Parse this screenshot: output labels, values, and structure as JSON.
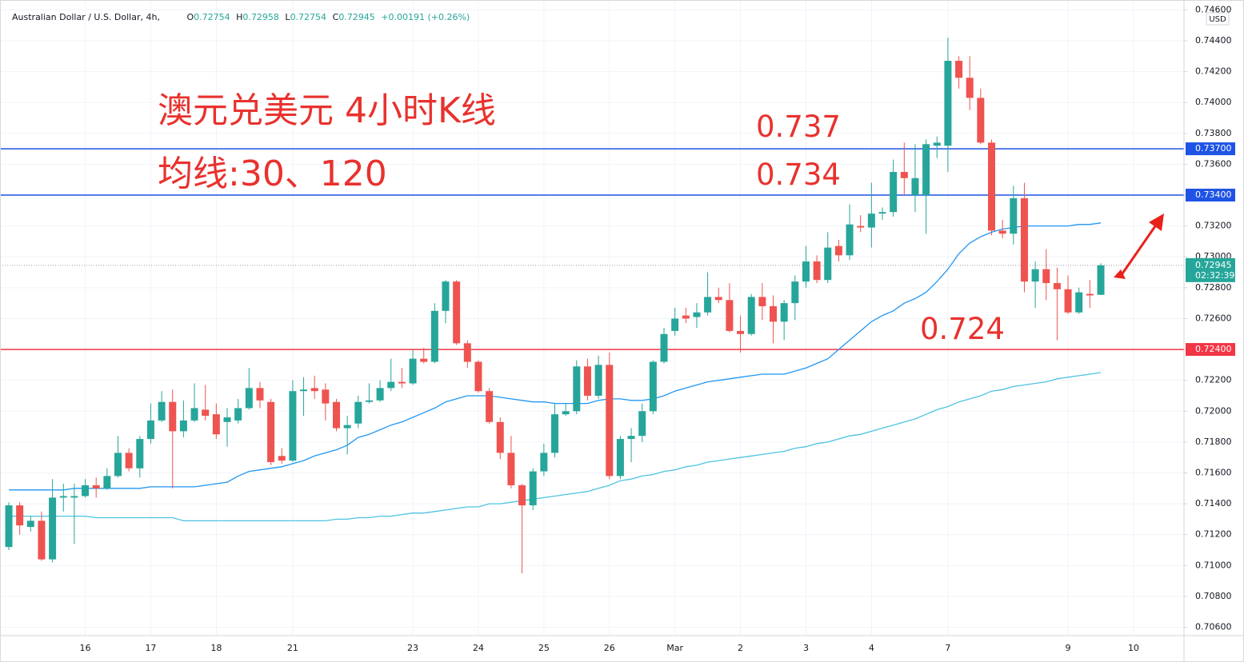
{
  "header": {
    "symbol": "Australian Dollar / U.S. Dollar, 4h,",
    "ohlc_keys": [
      "O",
      "H",
      "L",
      "C"
    ],
    "change": "+0.00191",
    "change_percent": "(+0.26%)"
  },
  "chart_data": {
    "type": "candlestick",
    "currency": "USD",
    "annotations": [
      "澳元兑美元 4小时K线",
      "均线:30、120"
    ],
    "up_color": "#26a69a",
    "down_color": "#ef5350",
    "grid": true,
    "categories": [
      null,
      null,
      null,
      null,
      null,
      null,
      null,
      "16",
      null,
      null,
      null,
      null,
      null,
      "17",
      null,
      null,
      null,
      null,
      null,
      "18",
      null,
      null,
      null,
      null,
      null,
      null,
      "21",
      null,
      null,
      null,
      null,
      null,
      null,
      null,
      null,
      null,
      null,
      "23",
      null,
      null,
      null,
      null,
      null,
      "24",
      null,
      null,
      null,
      null,
      null,
      "25",
      null,
      null,
      null,
      null,
      null,
      "26",
      null,
      null,
      null,
      null,
      null,
      "Mar",
      null,
      null,
      null,
      null,
      null,
      "2",
      null,
      null,
      null,
      null,
      null,
      "3",
      null,
      null,
      null,
      null,
      null,
      "4",
      null,
      null,
      null,
      null,
      null,
      null,
      "7",
      null,
      null,
      null,
      null,
      null,
      null,
      null,
      null,
      null,
      null,
      "9",
      null,
      null,
      null,
      null,
      null,
      "10",
      null,
      null,
      null,
      null
    ],
    "open": [
      0.7112,
      0.7139,
      0.7125,
      0.7129,
      0.7104,
      0.7144,
      0.7144,
      0.7145,
      0.7152,
      0.715,
      0.7158,
      0.7173,
      0.7163,
      0.7182,
      0.7194,
      0.7206,
      0.7187,
      0.7194,
      0.7201,
      0.7198,
      0.7193,
      0.7194,
      0.7202,
      0.7215,
      0.7206,
      0.7171,
      0.7168,
      0.7213,
      0.7215,
      0.7214,
      0.7206,
      0.7189,
      0.7192,
      0.7206,
      0.7207,
      0.7215,
      0.7219,
      0.7218,
      0.7234,
      0.7232,
      0.7265,
      0.7284,
      0.7244,
      0.7232,
      0.7213,
      0.7193,
      0.7173,
      0.7152,
      0.7139,
      0.7161,
      0.7173,
      0.7198,
      0.72,
      0.7229,
      0.721,
      0.723,
      0.7158,
      0.7182,
      0.7184,
      0.72,
      0.7232,
      0.7252,
      0.7262,
      0.7261,
      0.7264,
      0.7274,
      0.7272,
      0.7252,
      0.725,
      0.7274,
      0.7268,
      0.7258,
      0.727,
      0.7284,
      0.7297,
      0.7285,
      0.7307,
      0.7301,
      0.732,
      0.7319,
      0.7328,
      0.7329,
      0.7355,
      0.734,
      0.734,
      0.7372,
      0.7372,
      0.7427,
      0.7416,
      0.7403,
      0.7374,
      0.7317,
      0.7315,
      0.7338,
      0.7284,
      0.7292,
      0.7283,
      0.7279,
      0.7264,
      0.7276,
      0.72754,
      null,
      null,
      null,
      null,
      null,
      null,
      null
    ],
    "high": [
      0.7141,
      0.7141,
      0.7132,
      0.7135,
      0.7156,
      0.7153,
      0.7153,
      0.7156,
      0.7157,
      0.7163,
      0.7184,
      0.7176,
      0.7184,
      0.7205,
      0.7213,
      0.7214,
      0.7207,
      0.7218,
      0.7217,
      0.7205,
      0.7202,
      0.7208,
      0.7228,
      0.7219,
      0.7208,
      0.7176,
      0.722,
      0.7222,
      0.7223,
      0.7218,
      0.7208,
      0.7197,
      0.721,
      0.7218,
      0.722,
      0.7234,
      0.7228,
      0.724,
      0.7241,
      0.727,
      0.7285,
      0.7285,
      0.7246,
      0.7233,
      0.7215,
      0.7196,
      0.7184,
      0.7153,
      0.7163,
      0.7179,
      0.7205,
      0.7205,
      0.7233,
      0.7234,
      0.7236,
      0.7238,
      0.7184,
      0.7189,
      0.7205,
      0.7233,
      0.7254,
      0.7267,
      0.7267,
      0.727,
      0.729,
      0.728,
      0.7283,
      0.7262,
      0.7276,
      0.7283,
      0.7275,
      0.7272,
      0.7288,
      0.7307,
      0.7301,
      0.7316,
      0.7311,
      0.7334,
      0.7327,
      0.7348,
      0.7332,
      0.7363,
      0.7374,
      0.7373,
      0.7376,
      0.7378,
      0.7442,
      0.743,
      0.743,
      0.7409,
      0.7376,
      0.7324,
      0.7346,
      0.7348,
      0.7297,
      0.7305,
      0.7293,
      0.7288,
      0.728,
      0.7285,
      0.72958,
      null,
      null,
      null,
      null,
      null,
      null,
      null
    ],
    "low": [
      0.711,
      0.712,
      0.7122,
      0.7103,
      0.7102,
      0.7135,
      0.7114,
      0.7144,
      0.7144,
      0.7149,
      0.7157,
      0.7161,
      0.7157,
      0.7179,
      0.7193,
      0.715,
      0.7183,
      0.7193,
      0.7194,
      0.7182,
      0.7177,
      0.7192,
      0.7201,
      0.7202,
      0.7165,
      0.7166,
      0.7167,
      0.7197,
      0.7208,
      0.7194,
      0.7187,
      0.7172,
      0.7189,
      0.7205,
      0.7206,
      0.7213,
      0.7215,
      0.7217,
      0.7231,
      0.7231,
      0.7257,
      0.7243,
      0.7228,
      0.7212,
      0.7192,
      0.7169,
      0.715,
      0.7095,
      0.7136,
      0.7158,
      0.717,
      0.7197,
      0.7198,
      0.7207,
      0.7208,
      0.7156,
      0.7156,
      0.7167,
      0.718,
      0.7198,
      0.7231,
      0.7249,
      0.7257,
      0.7254,
      0.7262,
      0.727,
      0.7251,
      0.7238,
      0.7249,
      0.7259,
      0.7244,
      0.7246,
      0.7259,
      0.728,
      0.7283,
      0.7283,
      0.7297,
      0.7298,
      0.7316,
      0.7306,
      0.7324,
      0.7326,
      0.734,
      0.7329,
      0.7315,
      0.7364,
      0.7355,
      0.7409,
      0.7395,
      0.7373,
      0.7314,
      0.7312,
      0.7308,
      0.7277,
      0.7267,
      0.7272,
      0.7246,
      0.7263,
      0.7263,
      0.7267,
      0.72754,
      null,
      null,
      null,
      null,
      null,
      null,
      null
    ],
    "close": [
      0.7139,
      0.7126,
      0.7129,
      0.7104,
      0.7144,
      0.7145,
      0.7145,
      0.7152,
      0.715,
      0.7158,
      0.7173,
      0.7163,
      0.7182,
      0.7194,
      0.7206,
      0.7187,
      0.7194,
      0.7202,
      0.7197,
      0.7185,
      0.7196,
      0.7202,
      0.7215,
      0.7207,
      0.7167,
      0.7168,
      0.7213,
      0.7214,
      0.7213,
      0.7205,
      0.7189,
      0.7191,
      0.7206,
      0.7207,
      0.7215,
      0.7219,
      0.7218,
      0.7234,
      0.7232,
      0.7265,
      0.7284,
      0.7244,
      0.7232,
      0.7213,
      0.7193,
      0.7173,
      0.7152,
      0.7139,
      0.7161,
      0.7173,
      0.7198,
      0.72,
      0.7229,
      0.721,
      0.723,
      0.7158,
      0.7182,
      0.7184,
      0.72,
      0.7232,
      0.725,
      0.726,
      0.726,
      0.7264,
      0.7274,
      0.7272,
      0.7252,
      0.725,
      0.7274,
      0.7268,
      0.7258,
      0.727,
      0.7284,
      0.7297,
      0.7285,
      0.7306,
      0.7301,
      0.7321,
      0.7319,
      0.7328,
      0.7329,
      0.7355,
      0.7351,
      0.7351,
      0.7373,
      0.7374,
      0.7427,
      0.7416,
      0.7403,
      0.7374,
      0.7317,
      0.7315,
      0.7338,
      0.7284,
      0.7292,
      0.7283,
      0.7279,
      0.7264,
      0.7277,
      0.7275,
      0.72945,
      null,
      null,
      null,
      null,
      null,
      null,
      null
    ],
    "series": [
      {
        "color": "#2196f3",
        "values": [
          0.7149,
          0.7149,
          0.7149,
          0.7149,
          0.7149,
          0.7149,
          0.715,
          0.715,
          0.715,
          0.715,
          0.715,
          0.715,
          0.715,
          0.7151,
          0.7151,
          0.7151,
          0.7151,
          0.7151,
          0.7152,
          0.7153,
          0.7154,
          0.7158,
          0.7161,
          0.7162,
          0.7163,
          0.7164,
          0.7166,
          0.7168,
          0.7171,
          0.7173,
          0.7175,
          0.7178,
          0.7183,
          0.7185,
          0.7188,
          0.7191,
          0.7193,
          0.7196,
          0.7199,
          0.7202,
          0.7206,
          0.7208,
          0.721,
          0.721,
          0.721,
          0.7209,
          0.7208,
          0.7207,
          0.7206,
          0.7206,
          0.7205,
          0.7205,
          0.7205,
          0.7205,
          0.7207,
          0.7208,
          0.7208,
          0.7207,
          0.7207,
          0.7208,
          0.721,
          0.7213,
          0.7215,
          0.7217,
          0.7219,
          0.722,
          0.7221,
          0.7222,
          0.7223,
          0.7224,
          0.7224,
          0.7224,
          0.7226,
          0.7228,
          0.7231,
          0.7234,
          0.724,
          0.7246,
          0.7252,
          0.7258,
          0.7262,
          0.7265,
          0.727,
          0.7273,
          0.7277,
          0.7284,
          0.7292,
          0.7302,
          0.7309,
          0.7313,
          0.7316,
          0.7318,
          0.7319,
          0.732,
          0.732,
          0.732,
          0.732,
          0.732,
          0.7321,
          0.7321,
          0.7322,
          null,
          null,
          null,
          null,
          null,
          null,
          null
        ]
      },
      {
        "color": "#4dc3e0",
        "values": [
          0.7132,
          0.7132,
          0.7132,
          0.7132,
          0.7132,
          0.7132,
          0.7132,
          0.7132,
          0.7131,
          0.7131,
          0.7131,
          0.7131,
          0.7131,
          0.7131,
          0.7131,
          0.7131,
          0.7129,
          0.7129,
          0.7129,
          0.7129,
          0.7129,
          0.7129,
          0.7129,
          0.7129,
          0.7129,
          0.7129,
          0.7129,
          0.7129,
          0.7129,
          0.7129,
          0.713,
          0.713,
          0.7131,
          0.7131,
          0.7132,
          0.7132,
          0.7133,
          0.7134,
          0.7134,
          0.7135,
          0.7136,
          0.7137,
          0.7138,
          0.7138,
          0.714,
          0.714,
          0.7141,
          0.7142,
          0.7143,
          0.7144,
          0.7145,
          0.7146,
          0.7147,
          0.7148,
          0.715,
          0.7152,
          0.7155,
          0.7156,
          0.7158,
          0.7159,
          0.7161,
          0.7162,
          0.7164,
          0.7165,
          0.7167,
          0.7168,
          0.7169,
          0.717,
          0.7171,
          0.7172,
          0.7173,
          0.7174,
          0.7176,
          0.7177,
          0.7179,
          0.718,
          0.7182,
          0.7184,
          0.7185,
          0.7187,
          0.7189,
          0.7191,
          0.7193,
          0.7195,
          0.7198,
          0.7201,
          0.7203,
          0.7206,
          0.7208,
          0.721,
          0.7213,
          0.7214,
          0.7216,
          0.7217,
          0.7218,
          0.7219,
          0.7221,
          0.7222,
          0.7223,
          0.7224,
          0.7225,
          null,
          null,
          null,
          null,
          null,
          null,
          null
        ]
      }
    ],
    "reference_lines": [
      {
        "value": 0.737,
        "label": "0.73700",
        "color": "#1e53e5"
      },
      {
        "value": 0.734,
        "label": "0.73400",
        "color": "#1e53e5"
      },
      {
        "value": 0.724,
        "label": "0.72400",
        "color": "#f23645"
      }
    ],
    "countdown": "02:32:39",
    "ylim": [
      0.70546,
      0.74664
    ],
    "yticks": [
      {
        "value": 0.706,
        "label": "0.70600"
      },
      {
        "value": 0.708,
        "label": "0.70800"
      },
      {
        "value": 0.71,
        "label": "0.71000"
      },
      {
        "value": 0.712,
        "label": "0.71200"
      },
      {
        "value": 0.714,
        "label": "0.71400"
      },
      {
        "value": 0.716,
        "label": "0.71600"
      },
      {
        "value": 0.718,
        "label": "0.71800"
      },
      {
        "value": 0.72,
        "label": "0.72000"
      },
      {
        "value": 0.722,
        "label": "0.72200"
      },
      {
        "value": 0.724,
        "label": "0.72400"
      },
      {
        "value": 0.726,
        "label": "0.72600"
      },
      {
        "value": 0.728,
        "label": "0.72800"
      },
      {
        "value": 0.73,
        "label": "0.73000"
      },
      {
        "value": 0.732,
        "label": "0.73200"
      },
      {
        "value": 0.734,
        "label": "0.73400"
      },
      {
        "value": 0.736,
        "label": "0.73600"
      },
      {
        "value": 0.738,
        "label": "0.73800"
      },
      {
        "value": 0.74,
        "label": "0.74000"
      },
      {
        "value": 0.742,
        "label": "0.74200"
      },
      {
        "value": 0.744,
        "label": "0.74400"
      },
      {
        "value": 0.746,
        "label": "0.74600"
      }
    ]
  }
}
